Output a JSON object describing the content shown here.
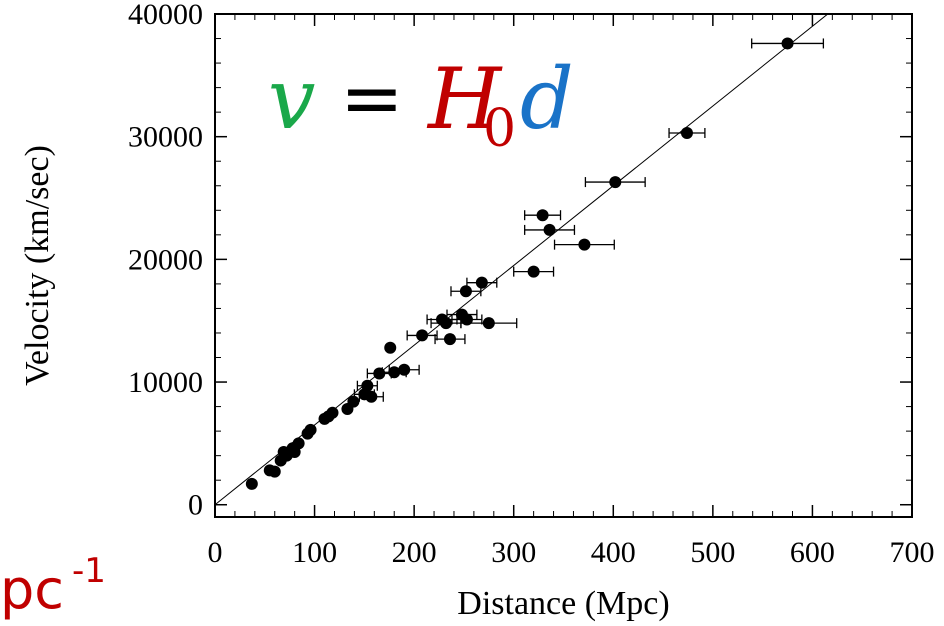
{
  "chart_data": {
    "type": "scatter",
    "xlabel": "Distance (Mpc)",
    "ylabel": "Velocity (km/sec)",
    "xlim": [
      0,
      700
    ],
    "ylim": [
      -1000,
      40000
    ],
    "x_ticks": [
      0,
      100,
      200,
      300,
      400,
      500,
      600,
      700
    ],
    "y_ticks": [
      0,
      10000,
      20000,
      30000,
      40000
    ],
    "x_tick_labels": [
      "0",
      "100",
      "200",
      "300",
      "400",
      "500",
      "600",
      "700"
    ],
    "y_tick_labels": [
      "0",
      "10000",
      "20000",
      "30000",
      "40000"
    ],
    "grid": false,
    "fit_line": {
      "slope": 65,
      "intercept": 0
    },
    "points": [
      {
        "x": 37,
        "y": 1700,
        "xerr": 0
      },
      {
        "x": 55,
        "y": 2800,
        "xerr": 0
      },
      {
        "x": 60,
        "y": 2700,
        "xerr": 0
      },
      {
        "x": 66,
        "y": 3600,
        "xerr": 0
      },
      {
        "x": 69,
        "y": 4300,
        "xerr": 0
      },
      {
        "x": 72,
        "y": 4000,
        "xerr": 0
      },
      {
        "x": 78,
        "y": 4600,
        "xerr": 0
      },
      {
        "x": 80,
        "y": 4300,
        "xerr": 0
      },
      {
        "x": 84,
        "y": 5000,
        "xerr": 0
      },
      {
        "x": 93,
        "y": 5800,
        "xerr": 0
      },
      {
        "x": 96,
        "y": 6100,
        "xerr": 0
      },
      {
        "x": 110,
        "y": 7000,
        "xerr": 0
      },
      {
        "x": 114,
        "y": 7200,
        "xerr": 0
      },
      {
        "x": 118,
        "y": 7500,
        "xerr": 0
      },
      {
        "x": 133,
        "y": 7800,
        "xerr": 0
      },
      {
        "x": 139,
        "y": 8400,
        "xerr": 0
      },
      {
        "x": 150,
        "y": 9000,
        "xerr": 10
      },
      {
        "x": 153,
        "y": 9700,
        "xerr": 10
      },
      {
        "x": 157,
        "y": 8800,
        "xerr": 12
      },
      {
        "x": 165,
        "y": 10700,
        "xerr": 12
      },
      {
        "x": 176,
        "y": 12800,
        "xerr": 0
      },
      {
        "x": 180,
        "y": 10800,
        "xerr": 12
      },
      {
        "x": 190,
        "y": 11000,
        "xerr": 15
      },
      {
        "x": 208,
        "y": 13800,
        "xerr": 15
      },
      {
        "x": 228,
        "y": 15100,
        "xerr": 15
      },
      {
        "x": 232,
        "y": 14800,
        "xerr": 15
      },
      {
        "x": 236,
        "y": 13500,
        "xerr": 15
      },
      {
        "x": 248,
        "y": 15500,
        "xerr": 15
      },
      {
        "x": 253,
        "y": 15100,
        "xerr": 15
      },
      {
        "x": 252,
        "y": 17400,
        "xerr": 15
      },
      {
        "x": 268,
        "y": 18100,
        "xerr": 15
      },
      {
        "x": 275,
        "y": 14800,
        "xerr": 28
      },
      {
        "x": 320,
        "y": 19000,
        "xerr": 20
      },
      {
        "x": 329,
        "y": 23600,
        "xerr": 18
      },
      {
        "x": 336,
        "y": 22400,
        "xerr": 25
      },
      {
        "x": 371,
        "y": 21200,
        "xerr": 30
      },
      {
        "x": 402,
        "y": 26300,
        "xerr": 30
      },
      {
        "x": 474,
        "y": 30300,
        "xerr": 18
      },
      {
        "x": 575,
        "y": 37600,
        "xerr": 36
      }
    ]
  },
  "equation": {
    "v": "v",
    "eq": "=",
    "H": "H",
    "sub": "0",
    "d": "d"
  },
  "colors": {
    "v": "#1aa84a",
    "H": "#c00000",
    "d": "#1a73c8",
    "frag": "#c00000"
  },
  "fragment": {
    "text": "pc",
    "sup": "-1"
  }
}
